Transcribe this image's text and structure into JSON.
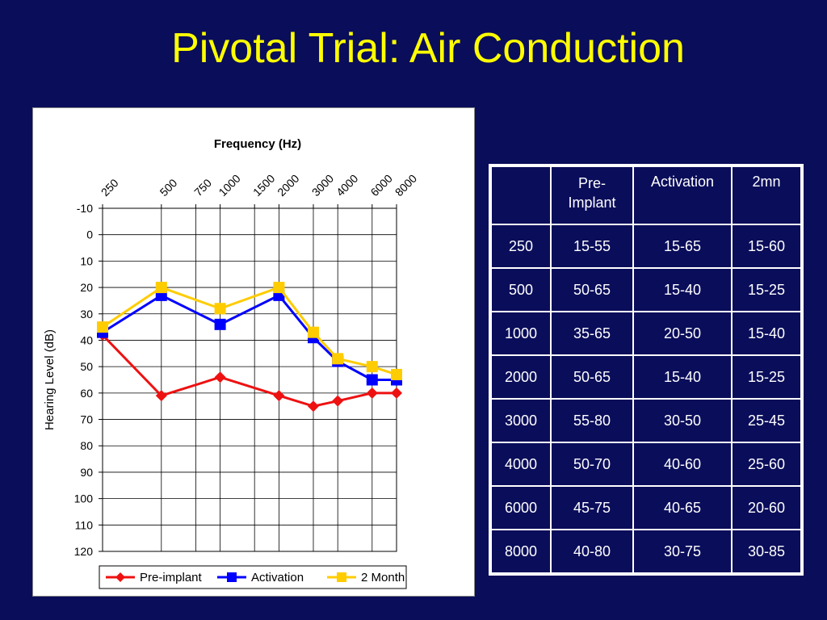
{
  "slide": {
    "title": "Pivotal Trial:  Air Conduction"
  },
  "chart_data": {
    "type": "line",
    "title": "Frequency (Hz)",
    "xlabel": "Frequency (Hz)",
    "ylabel": "Hearing Level (dB)",
    "categories": [
      "250",
      "500",
      "750",
      "1000",
      "1500",
      "2000",
      "3000",
      "4000",
      "6000",
      "8000"
    ],
    "ylim": [
      -10,
      120
    ],
    "y_inverted": true,
    "y_ticks": [
      -10,
      0,
      10,
      20,
      30,
      40,
      50,
      60,
      70,
      80,
      90,
      100,
      110,
      120
    ],
    "grid": true,
    "legend": "bottom",
    "series": [
      {
        "name": "Pre-implant",
        "color": "#ee1111",
        "marker": "diamond",
        "points": [
          [
            "250",
            38
          ],
          [
            "500",
            61
          ],
          [
            "1000",
            54
          ],
          [
            "2000",
            61
          ],
          [
            "3000",
            65
          ],
          [
            "4000",
            63
          ],
          [
            "6000",
            60
          ],
          [
            "8000",
            60
          ]
        ]
      },
      {
        "name": "Activation",
        "color": "#0000ff",
        "marker": "square",
        "points": [
          [
            "250",
            37
          ],
          [
            "500",
            23
          ],
          [
            "1000",
            34
          ],
          [
            "2000",
            23
          ],
          [
            "3000",
            39
          ],
          [
            "4000",
            48
          ],
          [
            "6000",
            55
          ],
          [
            "8000",
            55
          ]
        ]
      },
      {
        "name": "2 Month",
        "color": "#ffcc00",
        "marker": "square",
        "points": [
          [
            "250",
            35
          ],
          [
            "500",
            20
          ],
          [
            "1000",
            28
          ],
          [
            "2000",
            20
          ],
          [
            "3000",
            37
          ],
          [
            "4000",
            47
          ],
          [
            "6000",
            50
          ],
          [
            "8000",
            53
          ]
        ]
      }
    ]
  },
  "table": {
    "headers": [
      "",
      "Pre-\nImplant",
      "Activation",
      "2mn"
    ],
    "rows": [
      [
        "250",
        "15-55",
        "15-65",
        "15-60"
      ],
      [
        "500",
        "50-65",
        "15-40",
        "15-25"
      ],
      [
        "1000",
        "35-65",
        "20-50",
        "15-40"
      ],
      [
        "2000",
        "50-65",
        "15-40",
        "15-25"
      ],
      [
        "3000",
        "55-80",
        "30-50",
        "25-45"
      ],
      [
        "4000",
        "50-70",
        "40-60",
        "25-60"
      ],
      [
        "6000",
        "45-75",
        "40-65",
        "20-60"
      ],
      [
        "8000",
        "40-80",
        "30-75",
        "30-85"
      ]
    ]
  }
}
